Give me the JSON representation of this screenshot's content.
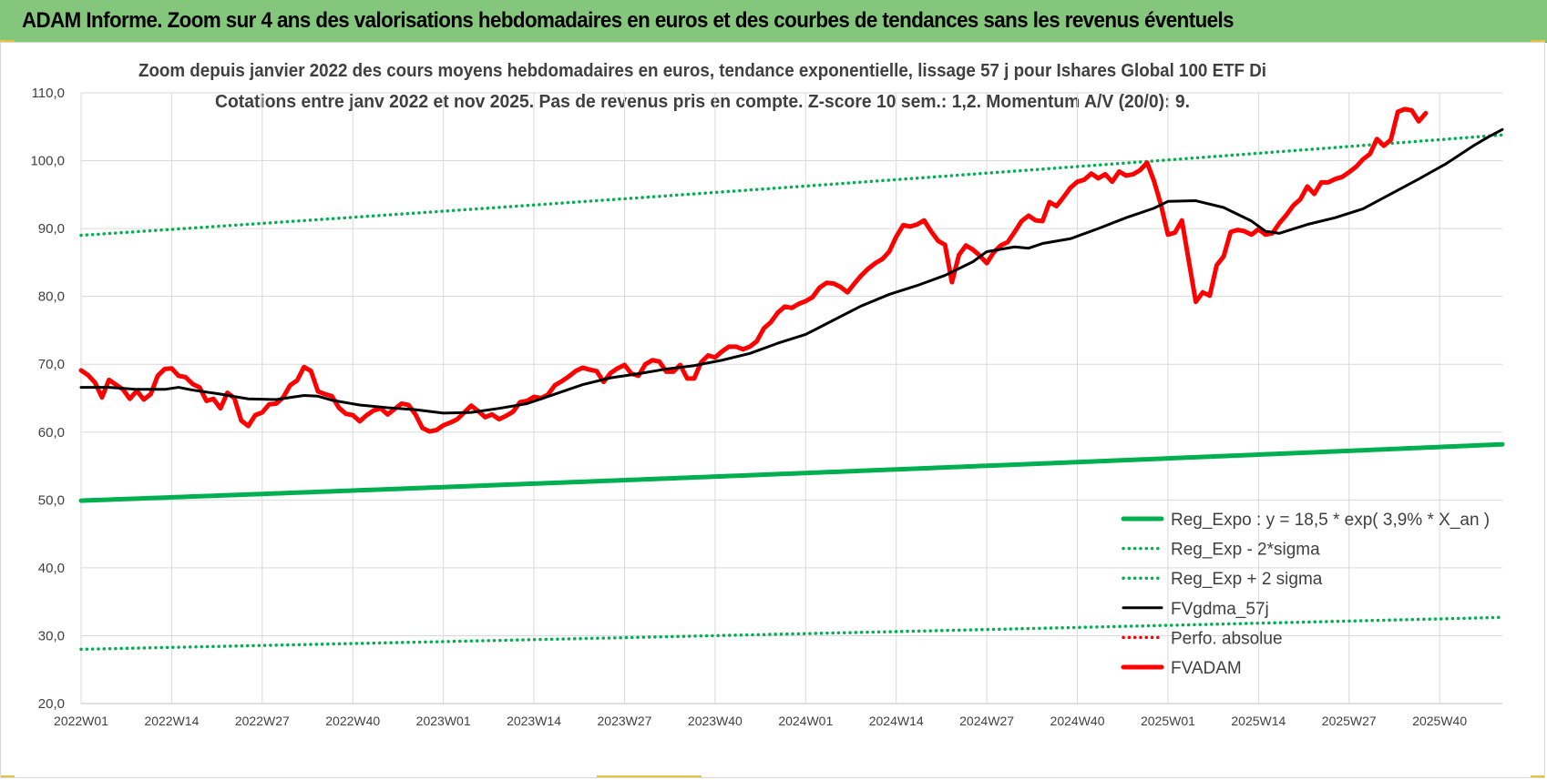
{
  "header": {
    "title": "ADAM Informe. Zoom sur 4 ans des valorisations hebdomadaires en euros et des courbes de tendances sans les revenus éventuels"
  },
  "colors": {
    "header_bg": "#84c77c",
    "regression": "#00b050",
    "fvgdma": "#000000",
    "fvadam": "#ff0000",
    "perfo": "#ff0000",
    "grid": "#d9d9d9"
  },
  "chart_data": {
    "type": "line",
    "title_line1": "Zoom depuis janvier 2022 des cours moyens hebdomadaires en euros, tendance exponentielle, lissage 57 j pour Ishares Global 100 ETF Di",
    "title_line2": "Cotations entre janv 2022 et nov 2025. Pas de revenus pris en compte. Z-score 10 sem.: 1,2. Momentum A/V (20/0): 9.",
    "ylim": [
      20,
      110
    ],
    "yticks": [
      "20,0",
      "30,0",
      "40,0",
      "50,0",
      "60,0",
      "70,0",
      "80,0",
      "90,0",
      "100,0",
      "110,0"
    ],
    "x_week_count": 204,
    "xticks": [
      {
        "week": 0,
        "label": "2022W01"
      },
      {
        "week": 13,
        "label": "2022W14"
      },
      {
        "week": 26,
        "label": "2022W27"
      },
      {
        "week": 39,
        "label": "2022W40"
      },
      {
        "week": 52,
        "label": "2023W01"
      },
      {
        "week": 65,
        "label": "2023W14"
      },
      {
        "week": 78,
        "label": "2023W27"
      },
      {
        "week": 91,
        "label": "2023W40"
      },
      {
        "week": 104,
        "label": "2024W01"
      },
      {
        "week": 117,
        "label": "2024W14"
      },
      {
        "week": 130,
        "label": "2024W27"
      },
      {
        "week": 143,
        "label": "2024W40"
      },
      {
        "week": 156,
        "label": "2025W01"
      },
      {
        "week": 169,
        "label": "2025W14"
      },
      {
        "week": 182,
        "label": "2025W27"
      },
      {
        "week": 195,
        "label": "2025W40"
      }
    ],
    "legend_position": "bottom-right",
    "grid": true,
    "series": [
      {
        "key": "reg_expo",
        "name": "Reg_Expo : y = 18,5 * exp( 3,9% *  X_an )",
        "style": "solid-thick",
        "color": "#00b050",
        "start": {
          "week": 0,
          "value": 49.9
        },
        "end": {
          "week": 204,
          "value": 58.2
        }
      },
      {
        "key": "reg_minus",
        "name": "Reg_Exp - 2*sigma",
        "style": "dotted",
        "color": "#00b050",
        "start": {
          "week": 0,
          "value": 28.0
        },
        "end": {
          "week": 204,
          "value": 32.7
        }
      },
      {
        "key": "reg_plus",
        "name": "Reg_Exp + 2 sigma",
        "style": "dotted",
        "color": "#00b050",
        "start": {
          "week": 0,
          "value": 89.0
        },
        "end": {
          "week": 204,
          "value": 103.8
        }
      },
      {
        "key": "fvgdma",
        "name": "FVgdma_57j",
        "style": "solid",
        "color": "#000000",
        "points": [
          [
            0,
            66.6
          ],
          [
            4,
            66.6
          ],
          [
            8,
            66.3
          ],
          [
            12,
            66.3
          ],
          [
            14,
            66.6
          ],
          [
            16,
            66.2
          ],
          [
            20,
            65.6
          ],
          [
            24,
            64.9
          ],
          [
            28,
            64.8
          ],
          [
            32,
            65.4
          ],
          [
            34,
            65.3
          ],
          [
            36,
            64.7
          ],
          [
            40,
            64.0
          ],
          [
            44,
            63.6
          ],
          [
            48,
            63.3
          ],
          [
            52,
            62.8
          ],
          [
            56,
            62.9
          ],
          [
            60,
            63.5
          ],
          [
            64,
            64.2
          ],
          [
            68,
            65.6
          ],
          [
            72,
            67.0
          ],
          [
            76,
            68.0
          ],
          [
            80,
            68.6
          ],
          [
            84,
            69.3
          ],
          [
            88,
            69.8
          ],
          [
            92,
            70.6
          ],
          [
            96,
            71.6
          ],
          [
            100,
            73.1
          ],
          [
            104,
            74.4
          ],
          [
            108,
            76.5
          ],
          [
            112,
            78.6
          ],
          [
            116,
            80.3
          ],
          [
            120,
            81.6
          ],
          [
            124,
            83.1
          ],
          [
            128,
            85.1
          ],
          [
            130,
            86.6
          ],
          [
            134,
            87.3
          ],
          [
            136,
            87.1
          ],
          [
            138,
            87.8
          ],
          [
            142,
            88.5
          ],
          [
            146,
            90.0
          ],
          [
            150,
            91.6
          ],
          [
            154,
            93.0
          ],
          [
            156,
            94.0
          ],
          [
            160,
            94.1
          ],
          [
            164,
            93.1
          ],
          [
            168,
            91.1
          ],
          [
            170,
            89.6
          ],
          [
            172,
            89.3
          ],
          [
            176,
            90.6
          ],
          [
            180,
            91.6
          ],
          [
            184,
            92.9
          ],
          [
            188,
            95.1
          ],
          [
            192,
            97.3
          ],
          [
            196,
            99.6
          ],
          [
            200,
            102.3
          ],
          [
            202,
            103.5
          ],
          [
            204,
            104.6
          ]
        ]
      },
      {
        "key": "perfo",
        "name": "Perfo. absolue",
        "style": "dotted",
        "color": "#ff0000",
        "points": []
      },
      {
        "key": "fvadam",
        "name": "FVADAM",
        "style": "solid-thick",
        "color": "#ff0000",
        "points": [
          [
            0,
            69.1
          ],
          [
            1,
            68.4
          ],
          [
            2,
            67.3
          ],
          [
            3,
            65.1
          ],
          [
            4,
            67.7
          ],
          [
            5,
            67.0
          ],
          [
            6,
            66.3
          ],
          [
            7,
            64.9
          ],
          [
            8,
            66.1
          ],
          [
            9,
            64.8
          ],
          [
            10,
            65.6
          ],
          [
            11,
            68.3
          ],
          [
            12,
            69.3
          ],
          [
            13,
            69.4
          ],
          [
            14,
            68.3
          ],
          [
            15,
            68.1
          ],
          [
            16,
            67.1
          ],
          [
            17,
            66.6
          ],
          [
            18,
            64.6
          ],
          [
            19,
            64.9
          ],
          [
            20,
            63.5
          ],
          [
            21,
            65.8
          ],
          [
            22,
            65.0
          ],
          [
            23,
            61.7
          ],
          [
            24,
            60.9
          ],
          [
            25,
            62.5
          ],
          [
            26,
            62.9
          ],
          [
            27,
            64.1
          ],
          [
            28,
            64.2
          ],
          [
            29,
            65.1
          ],
          [
            30,
            66.9
          ],
          [
            31,
            67.6
          ],
          [
            32,
            69.6
          ],
          [
            33,
            69.0
          ],
          [
            34,
            66.0
          ],
          [
            35,
            65.6
          ],
          [
            36,
            65.3
          ],
          [
            37,
            63.6
          ],
          [
            38,
            62.7
          ],
          [
            39,
            62.5
          ],
          [
            40,
            61.6
          ],
          [
            41,
            62.5
          ],
          [
            42,
            63.2
          ],
          [
            43,
            63.5
          ],
          [
            44,
            62.6
          ],
          [
            45,
            63.4
          ],
          [
            46,
            64.2
          ],
          [
            47,
            64.0
          ],
          [
            48,
            62.6
          ],
          [
            49,
            60.6
          ],
          [
            50,
            60.1
          ],
          [
            51,
            60.3
          ],
          [
            52,
            61.0
          ],
          [
            53,
            61.4
          ],
          [
            54,
            61.9
          ],
          [
            55,
            62.9
          ],
          [
            56,
            63.9
          ],
          [
            57,
            63.1
          ],
          [
            58,
            62.2
          ],
          [
            59,
            62.6
          ],
          [
            60,
            61.9
          ],
          [
            61,
            62.4
          ],
          [
            62,
            63.0
          ],
          [
            63,
            64.4
          ],
          [
            64,
            64.6
          ],
          [
            65,
            65.2
          ],
          [
            66,
            65.0
          ],
          [
            67,
            65.5
          ],
          [
            68,
            66.9
          ],
          [
            69,
            67.5
          ],
          [
            70,
            68.2
          ],
          [
            71,
            69.0
          ],
          [
            72,
            69.5
          ],
          [
            73,
            69.2
          ],
          [
            74,
            69.0
          ],
          [
            75,
            67.4
          ],
          [
            76,
            68.7
          ],
          [
            77,
            69.4
          ],
          [
            78,
            69.9
          ],
          [
            79,
            68.6
          ],
          [
            80,
            68.3
          ],
          [
            81,
            70.0
          ],
          [
            82,
            70.6
          ],
          [
            83,
            70.4
          ],
          [
            84,
            68.9
          ],
          [
            85,
            68.9
          ],
          [
            86,
            69.9
          ],
          [
            87,
            67.9
          ],
          [
            88,
            67.9
          ],
          [
            89,
            70.3
          ],
          [
            90,
            71.3
          ],
          [
            91,
            71.0
          ],
          [
            92,
            71.9
          ],
          [
            93,
            72.6
          ],
          [
            94,
            72.6
          ],
          [
            95,
            72.2
          ],
          [
            96,
            72.6
          ],
          [
            97,
            73.4
          ],
          [
            98,
            75.3
          ],
          [
            99,
            76.2
          ],
          [
            100,
            77.6
          ],
          [
            101,
            78.5
          ],
          [
            102,
            78.3
          ],
          [
            103,
            78.9
          ],
          [
            104,
            79.3
          ],
          [
            105,
            79.9
          ],
          [
            106,
            81.3
          ],
          [
            107,
            82.0
          ],
          [
            108,
            81.9
          ],
          [
            109,
            81.4
          ],
          [
            110,
            80.6
          ],
          [
            111,
            81.9
          ],
          [
            112,
            83.1
          ],
          [
            113,
            84.1
          ],
          [
            114,
            84.9
          ],
          [
            115,
            85.5
          ],
          [
            116,
            86.6
          ],
          [
            117,
            88.8
          ],
          [
            118,
            90.5
          ],
          [
            119,
            90.3
          ],
          [
            120,
            90.6
          ],
          [
            121,
            91.2
          ],
          [
            122,
            89.6
          ],
          [
            123,
            88.2
          ],
          [
            124,
            87.6
          ],
          [
            125,
            82.1
          ],
          [
            126,
            86.1
          ],
          [
            127,
            87.5
          ],
          [
            128,
            86.9
          ],
          [
            129,
            86.0
          ],
          [
            130,
            84.9
          ],
          [
            131,
            86.5
          ],
          [
            132,
            87.5
          ],
          [
            133,
            88.0
          ],
          [
            134,
            89.5
          ],
          [
            135,
            91.1
          ],
          [
            136,
            91.9
          ],
          [
            137,
            91.2
          ],
          [
            138,
            91.1
          ],
          [
            139,
            93.9
          ],
          [
            140,
            93.3
          ],
          [
            141,
            94.6
          ],
          [
            142,
            96.0
          ],
          [
            143,
            96.9
          ],
          [
            144,
            97.2
          ],
          [
            145,
            98.1
          ],
          [
            146,
            97.4
          ],
          [
            147,
            98.0
          ],
          [
            148,
            96.9
          ],
          [
            149,
            98.4
          ],
          [
            150,
            97.8
          ],
          [
            151,
            98.0
          ],
          [
            152,
            98.6
          ],
          [
            153,
            99.7
          ],
          [
            154,
            97.0
          ],
          [
            155,
            93.5
          ],
          [
            156,
            89.1
          ],
          [
            157,
            89.4
          ],
          [
            158,
            91.2
          ],
          [
            159,
            85.2
          ],
          [
            160,
            79.2
          ],
          [
            161,
            80.6
          ],
          [
            162,
            80.1
          ],
          [
            163,
            84.6
          ],
          [
            164,
            85.9
          ],
          [
            165,
            89.5
          ],
          [
            166,
            89.8
          ],
          [
            167,
            89.6
          ],
          [
            168,
            89.1
          ],
          [
            169,
            89.9
          ],
          [
            170,
            89.1
          ],
          [
            171,
            89.3
          ],
          [
            172,
            90.8
          ],
          [
            173,
            92.0
          ],
          [
            174,
            93.4
          ],
          [
            175,
            94.3
          ],
          [
            176,
            96.2
          ],
          [
            177,
            95.1
          ],
          [
            178,
            96.8
          ],
          [
            179,
            96.8
          ],
          [
            180,
            97.3
          ],
          [
            181,
            97.6
          ],
          [
            182,
            98.3
          ],
          [
            183,
            99.1
          ],
          [
            184,
            100.2
          ],
          [
            185,
            101.0
          ],
          [
            186,
            103.2
          ],
          [
            187,
            102.2
          ],
          [
            188,
            103.1
          ],
          [
            189,
            107.2
          ],
          [
            190,
            107.6
          ],
          [
            191,
            107.4
          ],
          [
            192,
            105.8
          ],
          [
            193,
            107.0
          ]
        ]
      }
    ]
  }
}
